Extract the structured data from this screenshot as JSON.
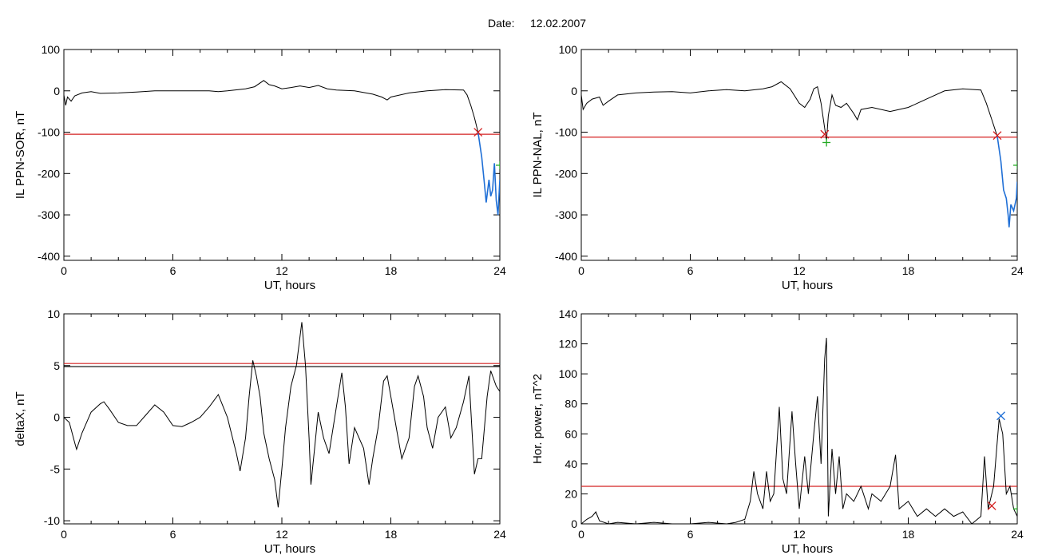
{
  "header": {
    "date_label": "Date:",
    "date_value": "12.02.2007"
  },
  "colors": {
    "series": "#000000",
    "threshold": "#d42020",
    "highlight": "#1f6fd6",
    "marker_red": "#d42020",
    "marker_blue": "#1f6fd6",
    "marker_green": "#22aa22"
  },
  "chart_data": [
    {
      "type": "line",
      "xlabel": "UT, hours",
      "ylabel": "IL PPN-SOR, nT",
      "xlim": [
        0,
        24
      ],
      "ylim": [
        -410,
        100
      ],
      "xticks": [
        0,
        6,
        12,
        18,
        24
      ],
      "yticks": [
        -400,
        -300,
        -200,
        -100,
        0,
        100
      ],
      "ytick_labels": [
        "-400",
        "-300",
        "-200",
        "-100",
        "0",
        "100"
      ],
      "grid": false,
      "series_points": [
        [
          0,
          -10
        ],
        [
          0.1,
          -35
        ],
        [
          0.2,
          -15
        ],
        [
          0.4,
          -25
        ],
        [
          0.6,
          -12
        ],
        [
          1,
          -5
        ],
        [
          1.5,
          -2
        ],
        [
          2,
          -6
        ],
        [
          3,
          -5
        ],
        [
          4,
          -3
        ],
        [
          5,
          0
        ],
        [
          6,
          0
        ],
        [
          7,
          0
        ],
        [
          8,
          0
        ],
        [
          8.5,
          -2
        ],
        [
          9,
          0
        ],
        [
          10,
          5
        ],
        [
          10.5,
          10
        ],
        [
          11,
          25
        ],
        [
          11.3,
          15
        ],
        [
          11.6,
          12
        ],
        [
          12,
          5
        ],
        [
          12.5,
          8
        ],
        [
          13,
          12
        ],
        [
          13.5,
          8
        ],
        [
          14,
          13
        ],
        [
          14.5,
          5
        ],
        [
          15,
          2
        ],
        [
          16,
          0
        ],
        [
          17,
          -8
        ],
        [
          17.5,
          -15
        ],
        [
          17.8,
          -22
        ],
        [
          18,
          -15
        ],
        [
          19,
          -5
        ],
        [
          20,
          0
        ],
        [
          21,
          3
        ],
        [
          22,
          2
        ],
        [
          22.2,
          -10
        ],
        [
          22.4,
          -35
        ],
        [
          22.6,
          -65
        ],
        [
          22.8,
          -100
        ]
      ],
      "highlight_points": [
        [
          22.8,
          -100
        ],
        [
          23,
          -160
        ],
        [
          23.15,
          -225
        ],
        [
          23.25,
          -270
        ],
        [
          23.4,
          -215
        ],
        [
          23.5,
          -255
        ],
        [
          23.6,
          -240
        ],
        [
          23.7,
          -175
        ],
        [
          23.8,
          -265
        ],
        [
          23.9,
          -300
        ],
        [
          24,
          -215
        ]
      ],
      "threshold": -105,
      "markers": [
        {
          "x": 22.8,
          "y": -100,
          "color": "red",
          "symbol": "x"
        },
        {
          "x": 24,
          "y": -180,
          "color": "green",
          "symbol": "+"
        }
      ]
    },
    {
      "type": "line",
      "xlabel": "UT, hours",
      "ylabel": "IL PPN-NAL, nT",
      "xlim": [
        0,
        24
      ],
      "ylim": [
        -410,
        100
      ],
      "xticks": [
        0,
        6,
        12,
        18,
        24
      ],
      "yticks": [
        -400,
        -300,
        -200,
        -100,
        0,
        100
      ],
      "ytick_labels": [
        "-400",
        "-300",
        "-200",
        "-100",
        "0",
        "100"
      ],
      "grid": false,
      "series_points": [
        [
          0,
          -10
        ],
        [
          0.1,
          -45
        ],
        [
          0.3,
          -30
        ],
        [
          0.6,
          -20
        ],
        [
          1,
          -15
        ],
        [
          1.2,
          -35
        ],
        [
          1.5,
          -25
        ],
        [
          2,
          -10
        ],
        [
          3,
          -5
        ],
        [
          4,
          -3
        ],
        [
          5,
          -2
        ],
        [
          6,
          -5
        ],
        [
          7,
          0
        ],
        [
          8,
          3
        ],
        [
          9,
          0
        ],
        [
          10,
          5
        ],
        [
          10.5,
          10
        ],
        [
          11,
          22
        ],
        [
          11.5,
          5
        ],
        [
          12,
          -30
        ],
        [
          12.3,
          -40
        ],
        [
          12.6,
          -20
        ],
        [
          12.8,
          5
        ],
        [
          13,
          10
        ],
        [
          13.2,
          -30
        ],
        [
          13.4,
          -90
        ],
        [
          13.5,
          -120
        ],
        [
          13.6,
          -60
        ],
        [
          13.8,
          -10
        ],
        [
          14,
          -35
        ],
        [
          14.3,
          -40
        ],
        [
          14.6,
          -30
        ],
        [
          15,
          -55
        ],
        [
          15.2,
          -70
        ],
        [
          15.4,
          -45
        ],
        [
          16,
          -40
        ],
        [
          17,
          -50
        ],
        [
          18,
          -40
        ],
        [
          19,
          -20
        ],
        [
          20,
          0
        ],
        [
          21,
          5
        ],
        [
          22,
          2
        ],
        [
          22.3,
          -30
        ],
        [
          22.6,
          -70
        ],
        [
          22.9,
          -110
        ]
      ],
      "highlight_points": [
        [
          22.9,
          -110
        ],
        [
          23.1,
          -170
        ],
        [
          23.25,
          -240
        ],
        [
          23.4,
          -260
        ],
        [
          23.5,
          -300
        ],
        [
          23.55,
          -330
        ],
        [
          23.65,
          -275
        ],
        [
          23.8,
          -290
        ],
        [
          23.95,
          -260
        ],
        [
          24,
          -220
        ]
      ],
      "threshold": -112,
      "markers": [
        {
          "x": 13.4,
          "y": -105,
          "color": "red",
          "symbol": "x"
        },
        {
          "x": 13.5,
          "y": -125,
          "color": "green",
          "symbol": "+"
        },
        {
          "x": 22.9,
          "y": -108,
          "color": "red",
          "symbol": "x"
        },
        {
          "x": 24,
          "y": -180,
          "color": "green",
          "symbol": "+"
        }
      ]
    },
    {
      "type": "line",
      "xlabel": "UT, hours",
      "ylabel": "deltaX, nT",
      "xlim": [
        0,
        24
      ],
      "ylim": [
        -10.3,
        10
      ],
      "xticks": [
        0,
        6,
        12,
        18,
        24
      ],
      "yticks": [
        -10,
        -5,
        0,
        5,
        10
      ],
      "ytick_labels": [
        "-10",
        "-5",
        "0",
        "5",
        "10"
      ],
      "grid": false,
      "series_points": [
        [
          0,
          0
        ],
        [
          0.3,
          -0.5
        ],
        [
          0.6,
          -2.5
        ],
        [
          0.7,
          -3.1
        ],
        [
          1,
          -1.5
        ],
        [
          1.5,
          0.5
        ],
        [
          2,
          1.3
        ],
        [
          2.2,
          1.5
        ],
        [
          2.5,
          0.8
        ],
        [
          3,
          -0.5
        ],
        [
          3.5,
          -0.8
        ],
        [
          4,
          -0.8
        ],
        [
          4.5,
          0.2
        ],
        [
          5,
          1.2
        ],
        [
          5.5,
          0.5
        ],
        [
          6,
          -0.8
        ],
        [
          6.5,
          -0.9
        ],
        [
          7,
          -0.5
        ],
        [
          7.5,
          0
        ],
        [
          8,
          1
        ],
        [
          8.5,
          2.2
        ],
        [
          9,
          0
        ],
        [
          9.5,
          -3.5
        ],
        [
          9.7,
          -5.2
        ],
        [
          10,
          -2
        ],
        [
          10.2,
          2
        ],
        [
          10.4,
          5.5
        ],
        [
          10.6,
          4
        ],
        [
          10.8,
          2
        ],
        [
          11,
          -1.5
        ],
        [
          11.3,
          -4
        ],
        [
          11.6,
          -6
        ],
        [
          11.8,
          -8.7
        ],
        [
          12,
          -5
        ],
        [
          12.2,
          -1
        ],
        [
          12.5,
          3
        ],
        [
          12.8,
          5
        ],
        [
          13.1,
          9.2
        ],
        [
          13.3,
          5
        ],
        [
          13.5,
          -2
        ],
        [
          13.6,
          -6.5
        ],
        [
          13.8,
          -3
        ],
        [
          14,
          0.5
        ],
        [
          14.3,
          -2
        ],
        [
          14.6,
          -3.5
        ],
        [
          15,
          1
        ],
        [
          15.3,
          4.3
        ],
        [
          15.5,
          1
        ],
        [
          15.7,
          -4.5
        ],
        [
          16,
          -1
        ],
        [
          16.5,
          -3
        ],
        [
          16.8,
          -6.5
        ],
        [
          17,
          -4
        ],
        [
          17.3,
          -1
        ],
        [
          17.6,
          3.5
        ],
        [
          17.8,
          4
        ],
        [
          18,
          2
        ],
        [
          18.3,
          -1
        ],
        [
          18.6,
          -4
        ],
        [
          19,
          -2
        ],
        [
          19.3,
          3
        ],
        [
          19.5,
          4
        ],
        [
          19.8,
          2
        ],
        [
          20,
          -1
        ],
        [
          20.3,
          -3
        ],
        [
          20.6,
          0
        ],
        [
          21,
          1
        ],
        [
          21.3,
          -2
        ],
        [
          21.6,
          -1
        ],
        [
          22,
          1.5
        ],
        [
          22.3,
          4
        ],
        [
          22.6,
          -5.5
        ],
        [
          22.8,
          -4
        ],
        [
          23,
          -4
        ],
        [
          23.3,
          2
        ],
        [
          23.5,
          4.5
        ],
        [
          23.8,
          3
        ],
        [
          24,
          2.5
        ]
      ],
      "thresholds": [
        {
          "y": 5.2,
          "color": "red"
        },
        {
          "y": 4.9,
          "color": "black"
        }
      ]
    },
    {
      "type": "line",
      "xlabel": "UT, hours",
      "ylabel": "Hor. power, nT^2",
      "xlim": [
        0,
        24
      ],
      "ylim": [
        0,
        140
      ],
      "xticks": [
        0,
        6,
        12,
        18,
        24
      ],
      "yticks": [
        0,
        20,
        40,
        60,
        80,
        100,
        120,
        140
      ],
      "ytick_labels": [
        "0",
        "20",
        "40",
        "60",
        "80",
        "100",
        "120",
        "140"
      ],
      "grid": false,
      "series_points": [
        [
          0,
          0
        ],
        [
          0.3,
          3
        ],
        [
          0.6,
          5
        ],
        [
          0.8,
          8
        ],
        [
          1,
          2
        ],
        [
          1.5,
          0
        ],
        [
          2,
          1
        ],
        [
          3,
          0
        ],
        [
          4,
          1
        ],
        [
          5,
          0
        ],
        [
          6,
          0
        ],
        [
          7,
          1
        ],
        [
          8,
          0
        ],
        [
          8.5,
          1
        ],
        [
          9,
          3
        ],
        [
          9.3,
          15
        ],
        [
          9.5,
          35
        ],
        [
          9.7,
          20
        ],
        [
          10,
          10
        ],
        [
          10.2,
          35
        ],
        [
          10.4,
          15
        ],
        [
          10.6,
          20
        ],
        [
          10.9,
          78
        ],
        [
          11.1,
          30
        ],
        [
          11.3,
          20
        ],
        [
          11.6,
          75
        ],
        [
          11.8,
          40
        ],
        [
          12,
          10
        ],
        [
          12.3,
          45
        ],
        [
          12.5,
          20
        ],
        [
          12.8,
          60
        ],
        [
          13,
          85
        ],
        [
          13.2,
          40
        ],
        [
          13.4,
          110
        ],
        [
          13.5,
          124
        ],
        [
          13.6,
          5
        ],
        [
          13.8,
          50
        ],
        [
          14,
          20
        ],
        [
          14.2,
          45
        ],
        [
          14.4,
          10
        ],
        [
          14.6,
          20
        ],
        [
          15,
          15
        ],
        [
          15.4,
          25
        ],
        [
          15.8,
          10
        ],
        [
          16,
          20
        ],
        [
          16.5,
          15
        ],
        [
          17,
          25
        ],
        [
          17.3,
          46
        ],
        [
          17.5,
          10
        ],
        [
          18,
          15
        ],
        [
          18.5,
          5
        ],
        [
          19,
          10
        ],
        [
          19.5,
          5
        ],
        [
          20,
          10
        ],
        [
          20.5,
          5
        ],
        [
          21,
          8
        ],
        [
          21.5,
          0
        ],
        [
          22,
          5
        ],
        [
          22.2,
          45
        ],
        [
          22.4,
          10
        ],
        [
          22.7,
          25
        ],
        [
          23,
          70
        ],
        [
          23.2,
          60
        ],
        [
          23.4,
          20
        ],
        [
          23.6,
          25
        ],
        [
          23.8,
          10
        ],
        [
          24,
          5
        ]
      ],
      "threshold": 25,
      "markers": [
        {
          "x": 23.1,
          "y": 72,
          "color": "blue",
          "symbol": "x"
        },
        {
          "x": 22.6,
          "y": 12,
          "color": "red",
          "symbol": "x"
        },
        {
          "x": 24,
          "y": 10,
          "color": "green",
          "symbol": "+"
        }
      ]
    }
  ]
}
